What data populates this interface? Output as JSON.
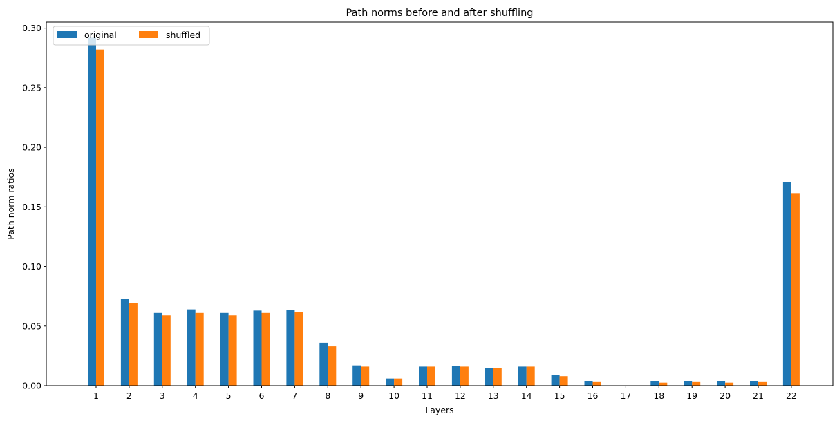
{
  "chart_data": {
    "type": "bar",
    "title": "Path norms before and after shuffling",
    "xlabel": "Layers",
    "ylabel": "Path norm ratios",
    "categories": [
      "1",
      "2",
      "3",
      "4",
      "5",
      "6",
      "7",
      "8",
      "9",
      "10",
      "11",
      "12",
      "13",
      "14",
      "15",
      "16",
      "17",
      "18",
      "19",
      "20",
      "21",
      "22"
    ],
    "series": [
      {
        "name": "original",
        "color": "#1f77b4",
        "values": [
          0.292,
          0.073,
          0.061,
          0.064,
          0.061,
          0.063,
          0.0635,
          0.036,
          0.017,
          0.006,
          0.016,
          0.0165,
          0.0145,
          0.016,
          0.009,
          0.0035,
          0.0,
          0.004,
          0.0035,
          0.0035,
          0.004,
          0.1705
        ]
      },
      {
        "name": "shuffled",
        "color": "#ff7f0e",
        "values": [
          0.282,
          0.069,
          0.059,
          0.061,
          0.059,
          0.061,
          0.062,
          0.033,
          0.016,
          0.006,
          0.016,
          0.016,
          0.0145,
          0.016,
          0.008,
          0.003,
          0.0,
          0.0025,
          0.003,
          0.0025,
          0.003,
          0.161
        ]
      }
    ],
    "ylim": [
      0,
      0.305
    ],
    "yticks": [
      "0.00",
      "0.05",
      "0.10",
      "0.15",
      "0.20",
      "0.25",
      "0.30"
    ],
    "legend": "top-left",
    "grid": false
  }
}
